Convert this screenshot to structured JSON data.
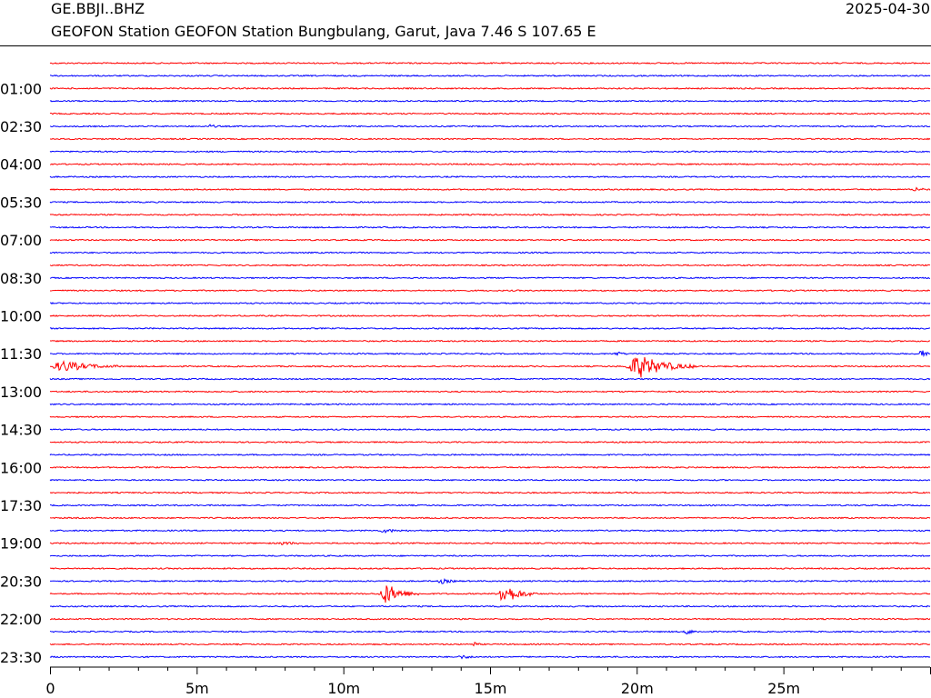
{
  "header": {
    "station_code": "GE.BBJI..BHZ",
    "date": "2025-04-30",
    "description": "GEOFON Station GEOFON Station Bungbulang, Garut, Java  7.46 S 107.65 E"
  },
  "colors": {
    "line_a": "#ff0000",
    "line_b": "#0000ff",
    "axis": "#000000"
  },
  "chart_data": {
    "type": "line",
    "title": "GE.BBJI..BHZ",
    "subtitle": "GEOFON Station GEOFON Station Bungbulang, Garut, Java  7.46 S 107.65 E",
    "date": "2025-04-30",
    "trace_count": 48,
    "minutes_per_trace": 30,
    "x_range_minutes": [
      0,
      30
    ],
    "x_ticks": [
      {
        "minutes": 0,
        "label": "0"
      },
      {
        "minutes": 5,
        "label": "5m"
      },
      {
        "minutes": 10,
        "label": "10m"
      },
      {
        "minutes": 15,
        "label": "15m"
      },
      {
        "minutes": 20,
        "label": "20m"
      },
      {
        "minutes": 25,
        "label": "25m"
      }
    ],
    "y_ticks": [
      {
        "trace": 2,
        "label": "01:00"
      },
      {
        "trace": 5,
        "label": "02:30"
      },
      {
        "trace": 8,
        "label": "04:00"
      },
      {
        "trace": 11,
        "label": "05:30"
      },
      {
        "trace": 14,
        "label": "07:00"
      },
      {
        "trace": 17,
        "label": "08:30"
      },
      {
        "trace": 20,
        "label": "10:00"
      },
      {
        "trace": 23,
        "label": "11:30"
      },
      {
        "trace": 26,
        "label": "13:00"
      },
      {
        "trace": 29,
        "label": "14:30"
      },
      {
        "trace": 32,
        "label": "16:00"
      },
      {
        "trace": 35,
        "label": "17:30"
      },
      {
        "trace": 38,
        "label": "19:00"
      },
      {
        "trace": 41,
        "label": "20:30"
      },
      {
        "trace": 44,
        "label": "22:00"
      },
      {
        "trace": 47,
        "label": "23:30"
      }
    ],
    "trace_colors": [
      "red",
      "blue"
    ],
    "events": [
      {
        "trace": 5,
        "start_min": 5.4,
        "end_min": 5.8,
        "amplitude": 0.3
      },
      {
        "trace": 10,
        "start_min": 29.4,
        "end_min": 30,
        "amplitude": 0.4
      },
      {
        "trace": 23,
        "start_min": 19.2,
        "end_min": 19.7,
        "amplitude": 0.4
      },
      {
        "trace": 23,
        "start_min": 29.6,
        "end_min": 30,
        "amplitude": 0.9
      },
      {
        "trace": 24,
        "start_min": 0,
        "end_min": 2.4,
        "amplitude": 1.0
      },
      {
        "trace": 24,
        "start_min": 19.6,
        "end_min": 22.1,
        "amplitude": 2.2
      },
      {
        "trace": 38,
        "start_min": 7.8,
        "end_min": 8.6,
        "amplitude": 0.3
      },
      {
        "trace": 37,
        "start_min": 11.2,
        "end_min": 12.3,
        "amplitude": 0.3
      },
      {
        "trace": 41,
        "start_min": 13.2,
        "end_min": 14.0,
        "amplitude": 0.4
      },
      {
        "trace": 42,
        "start_min": 11.2,
        "end_min": 12.6,
        "amplitude": 1.9
      },
      {
        "trace": 42,
        "start_min": 15.2,
        "end_min": 16.6,
        "amplitude": 2.0
      },
      {
        "trace": 45,
        "start_min": 21.6,
        "end_min": 22.1,
        "amplitude": 0.6
      },
      {
        "trace": 46,
        "start_min": 14.4,
        "end_min": 14.7,
        "amplitude": 0.4
      },
      {
        "trace": 47,
        "start_min": 13.9,
        "end_min": 14.6,
        "amplitude": 0.3
      }
    ]
  }
}
